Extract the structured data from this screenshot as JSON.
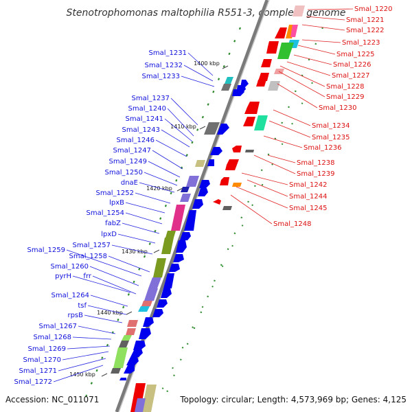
{
  "title": "Stenotrophomonas maltophilia R551-3, complete genome",
  "accession": "Accession: NC_011071",
  "summary": "Topology: circular; Length: 4,573,969 bp; Genes: 4,125",
  "kbp_ticks": [
    "1400 kbp",
    "1410 kbp",
    "1420 kbp",
    "1430 kbp",
    "1440 kbp",
    "1450 kbp"
  ],
  "left_labels": [
    "Smal_1231",
    "Smal_1232",
    "Smal_1233",
    "Smal_1237",
    "Smal_1240",
    "Smal_1241",
    "Smal_1243",
    "Smal_1246",
    "Smal_1247",
    "Smal_1249",
    "Smal_1250",
    "dnaE",
    "Smal_1252",
    "lpxB",
    "Smal_1254",
    "fabZ",
    "lpxD",
    "Smal_1257",
    "Smal_1259",
    "Smal_1258",
    "Smal_1260",
    "pyrH",
    "frr",
    "Smal_1264",
    "tsf",
    "rpsB",
    "Smal_1267",
    "Smal_1268",
    "Smal_1269",
    "Smal_1270",
    "Smal_1271",
    "Smal_1272"
  ],
  "right_labels": [
    "Smal_1220",
    "Smal_1221",
    "Smal_1222",
    "Smal_1223",
    "Smal_1225",
    "Smal_1226",
    "Smal_1227",
    "Smal_1228",
    "Smal_1229",
    "Smal_1230",
    "Smal_1234",
    "Smal_1235",
    "Smal_1236",
    "Smal_1238",
    "Smal_1239",
    "Smal_1242",
    "Smal_1244",
    "Smal_1245",
    "Smal_1248"
  ],
  "colors": {
    "forward_strand": "#0000ee",
    "reverse_strand": "#ee0000",
    "backbone": "#8a8a8a",
    "gc_ticks": "#2e8b2e",
    "cog_pink": "#e0308a",
    "cog_olive": "#7a9a20",
    "cog_purple": "#8070d8",
    "cog_green": "#30c030"
  }
}
